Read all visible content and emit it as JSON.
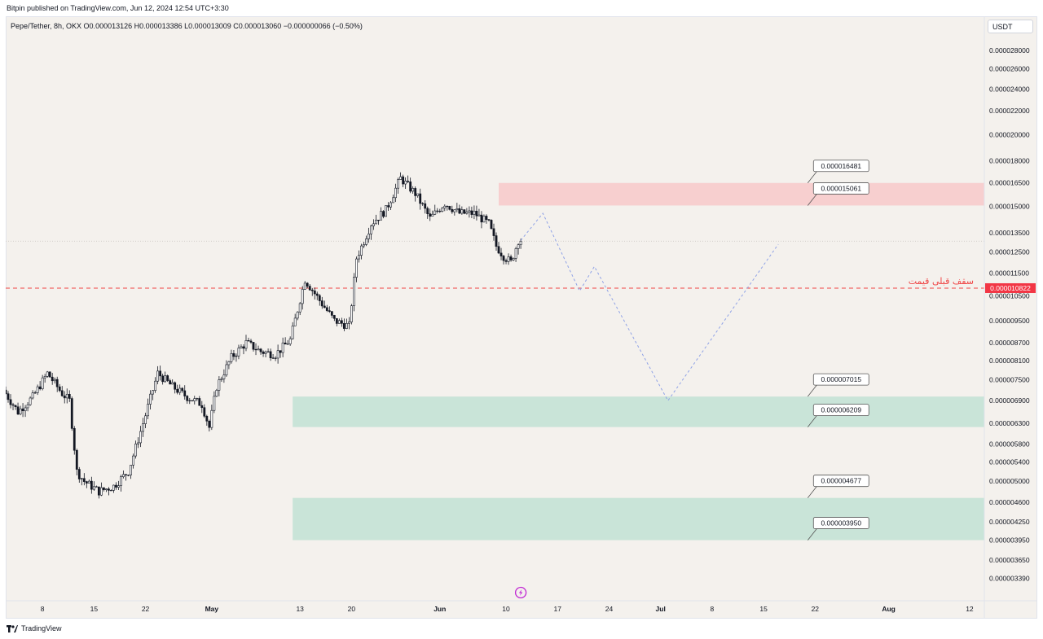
{
  "header": {
    "publisher": "Bitpin published on TradingView.com, Jun 12, 2024 12:54 UTC+3:30"
  },
  "legend": {
    "text": "Pepe/Tether, 8h, OKX  O0.000013126  H0.000013386  L0.000013009  C0.000013060  −0.000000066 (−0.50%)"
  },
  "currency_button": "USDT",
  "footer": {
    "brand": "TradingView",
    "logo": "tradingview-logo"
  },
  "colors": {
    "up": "#131722",
    "down": "#131722",
    "resistance_zone": "#f7cfcf",
    "support_zone": "#c9e4d8",
    "dashed_line": "#ef4444",
    "projection": "#8fa2e6",
    "price_tag": "#f23645"
  },
  "chart_data": {
    "type": "candlestick",
    "symbol": "Pepe/Tether",
    "interval": "8h",
    "exchange": "OKX",
    "y_axis": {
      "scale": "log",
      "ylim": [
        3.1e-06,
        3.21e-05
      ],
      "ticks": [
        "0.000028000",
        "0.000026000",
        "0.000024000",
        "0.000022000",
        "0.000020000",
        "0.000018000",
        "0.000016500",
        "0.000015000",
        "0.000013500",
        "0.000012500",
        "0.000011500",
        "0.000010500",
        "0.000009500",
        "0.000008700",
        "0.000008100",
        "0.000007500",
        "0.000006900",
        "0.000006300",
        "0.000005800",
        "0.000005400",
        "0.000005000",
        "0.000004600",
        "0.000004250",
        "0.000003950",
        "0.000003650",
        "0.000003390"
      ]
    },
    "x_axis": {
      "start": "2024-04-03",
      "end": "2024-08-14",
      "ticks": [
        {
          "date": "2024-04-08",
          "label": "8"
        },
        {
          "date": "2024-04-15",
          "label": "15"
        },
        {
          "date": "2024-04-22",
          "label": "22"
        },
        {
          "date": "2024-05-01",
          "label": "May"
        },
        {
          "date": "2024-05-13",
          "label": "13"
        },
        {
          "date": "2024-05-20",
          "label": "20"
        },
        {
          "date": "2024-06-01",
          "label": "Jun"
        },
        {
          "date": "2024-06-10",
          "label": "10"
        },
        {
          "date": "2024-06-17",
          "label": "17"
        },
        {
          "date": "2024-06-24",
          "label": "24"
        },
        {
          "date": "2024-07-01",
          "label": "Jul"
        },
        {
          "date": "2024-07-08",
          "label": "8"
        },
        {
          "date": "2024-07-15",
          "label": "15"
        },
        {
          "date": "2024-07-22",
          "label": "22"
        },
        {
          "date": "2024-08-01",
          "label": "Aug"
        },
        {
          "date": "2024-08-12",
          "label": "12"
        }
      ]
    },
    "price_path": [
      {
        "date": "2024-04-03",
        "value": 7.2e-06
      },
      {
        "date": "2024-04-05",
        "value": 6.6e-06
      },
      {
        "date": "2024-04-07",
        "value": 7e-06
      },
      {
        "date": "2024-04-09",
        "value": 7.7e-06
      },
      {
        "date": "2024-04-11",
        "value": 7.1e-06
      },
      {
        "date": "2024-04-12",
        "value": 6.9e-06
      },
      {
        "date": "2024-04-13",
        "value": 5.2e-06
      },
      {
        "date": "2024-04-14",
        "value": 5e-06
      },
      {
        "date": "2024-04-16",
        "value": 4.8e-06
      },
      {
        "date": "2024-04-18",
        "value": 4.9e-06
      },
      {
        "date": "2024-04-20",
        "value": 5.2e-06
      },
      {
        "date": "2024-04-22",
        "value": 6.3e-06
      },
      {
        "date": "2024-04-24",
        "value": 7.7e-06
      },
      {
        "date": "2024-04-26",
        "value": 7.3e-06
      },
      {
        "date": "2024-04-28",
        "value": 7e-06
      },
      {
        "date": "2024-04-30",
        "value": 6.8e-06
      },
      {
        "date": "2024-05-01",
        "value": 6.2e-06
      },
      {
        "date": "2024-05-02",
        "value": 7.3e-06
      },
      {
        "date": "2024-05-04",
        "value": 8.2e-06
      },
      {
        "date": "2024-05-06",
        "value": 8.7e-06
      },
      {
        "date": "2024-05-08",
        "value": 8.4e-06
      },
      {
        "date": "2024-05-10",
        "value": 8.3e-06
      },
      {
        "date": "2024-05-12",
        "value": 8.8e-06
      },
      {
        "date": "2024-05-14",
        "value": 1.12e-05
      },
      {
        "date": "2024-05-16",
        "value": 1.03e-05
      },
      {
        "date": "2024-05-18",
        "value": 9.5e-06
      },
      {
        "date": "2024-05-20",
        "value": 9.3e-06
      },
      {
        "date": "2024-05-21",
        "value": 1.22e-05
      },
      {
        "date": "2024-05-23",
        "value": 1.4e-05
      },
      {
        "date": "2024-05-25",
        "value": 1.48e-05
      },
      {
        "date": "2024-05-27",
        "value": 1.68e-05
      },
      {
        "date": "2024-05-29",
        "value": 1.58e-05
      },
      {
        "date": "2024-05-31",
        "value": 1.43e-05
      },
      {
        "date": "2024-06-02",
        "value": 1.52e-05
      },
      {
        "date": "2024-06-04",
        "value": 1.46e-05
      },
      {
        "date": "2024-06-06",
        "value": 1.46e-05
      },
      {
        "date": "2024-06-08",
        "value": 1.4e-05
      },
      {
        "date": "2024-06-09",
        "value": 1.28e-05
      },
      {
        "date": "2024-06-10",
        "value": 1.23e-05
      },
      {
        "date": "2024-06-11",
        "value": 1.2e-05
      },
      {
        "date": "2024-06-12",
        "value": 1.31e-05
      }
    ],
    "last_price": {
      "value": 1.306e-05,
      "date": "2024-06-12"
    },
    "dotted_level": {
      "value": 1.306e-05
    },
    "dashed_level": {
      "value": 1.0822e-05,
      "label": "سقف قبلی قیمت",
      "price_tag": "0.000010822"
    },
    "zones": [
      {
        "kind": "resistance",
        "from": "2024-06-09",
        "to": "2024-08-14",
        "low": 1.5061e-05,
        "high": 1.6481e-05
      },
      {
        "kind": "support",
        "from": "2024-05-12",
        "to": "2024-08-14",
        "low": 6.209e-06,
        "high": 7.015e-06
      },
      {
        "kind": "support",
        "from": "2024-05-12",
        "to": "2024-08-14",
        "low": 3.95e-06,
        "high": 4.677e-06
      }
    ],
    "callouts": [
      {
        "label": "0.000016481",
        "price": 1.6481e-05,
        "date": "2024-07-21"
      },
      {
        "label": "0.000015061",
        "price": 1.5061e-05,
        "date": "2024-07-21"
      },
      {
        "label": "0.000007015",
        "price": 7.015e-06,
        "date": "2024-07-21"
      },
      {
        "label": "0.000006209",
        "price": 6.209e-06,
        "date": "2024-07-21"
      },
      {
        "label": "0.000004677",
        "price": 4.677e-06,
        "date": "2024-07-21"
      },
      {
        "label": "0.000003950",
        "price": 3.95e-06,
        "date": "2024-07-21"
      }
    ],
    "projection_path": [
      {
        "date": "2024-06-12",
        "value": 1.31e-05
      },
      {
        "date": "2024-06-15",
        "value": 1.46e-05
      },
      {
        "date": "2024-06-20",
        "value": 1.07e-05
      },
      {
        "date": "2024-06-22",
        "value": 1.18e-05
      },
      {
        "date": "2024-07-02",
        "value": 6.9e-06
      },
      {
        "date": "2024-07-17",
        "value": 1.29e-05
      }
    ],
    "event_icon_date": "2024-06-12"
  }
}
